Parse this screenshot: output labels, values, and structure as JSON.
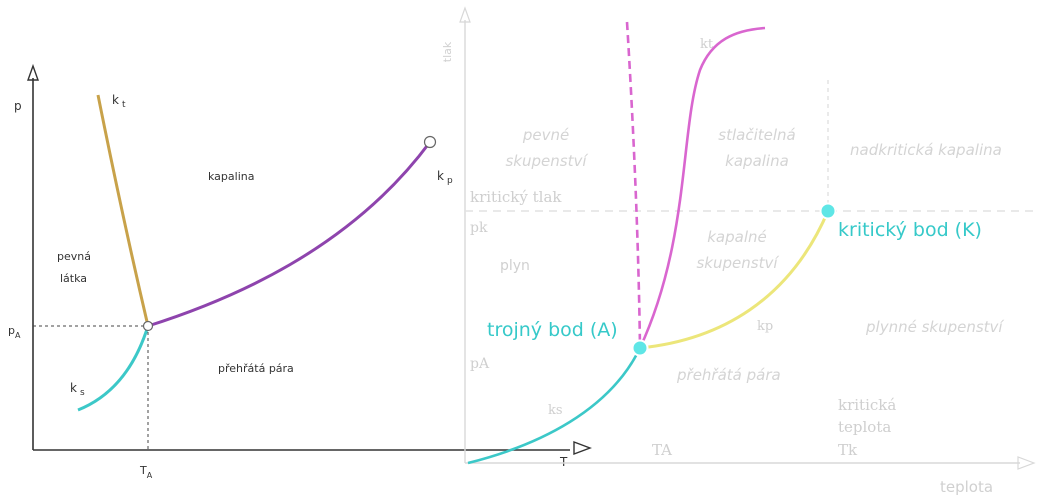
{
  "left_diagram": {
    "axis_y_label": "p",
    "axis_x_label": "T",
    "pA_label": "p",
    "pA_sub": "A",
    "TA_label": "T",
    "TA_sub": "A",
    "curve_kt_label": "k",
    "curve_kt_sub": "t",
    "curve_ks_label": "k",
    "curve_ks_sub": "s",
    "curve_kp_label": "k",
    "curve_kp_sub": "p",
    "region_solid": "pevná\nlátka",
    "region_liquid": "kapalina",
    "region_vapor": "přehřátá pára"
  },
  "right_diagram": {
    "axis_y_label": "tlak",
    "axis_x_label": "teplota",
    "region_solid": "pevné\nskupenství",
    "region_compressible_liquid": "stlačitelná\nkapalina",
    "region_supercritical": "nadkritická kapalina",
    "region_gas": "plyn",
    "region_liquid": "kapalné\nskupenství",
    "region_gaseous": "plynné skupenství",
    "region_vapor": "přehřátá pára",
    "critical_pressure": "kritický tlak",
    "pk_label": "pk",
    "pa_label": "pA",
    "ta_label": "TA",
    "tk_label": "Tk",
    "critical_temperature": "kritická\nteplota",
    "curve_kt_label": "kt",
    "curve_kp_label": "kp",
    "curve_ks_label": "ks",
    "triple_point_label": "trojný bod (A)",
    "critical_point_label": "kritický bod (K)"
  },
  "colors": {
    "melting_curve_left": "#c8a24a",
    "vapor_curve_left": "#8e44ad",
    "sublimation_curve": "#3cc8c8",
    "melting_curve_right": "#d966cf",
    "melting_dashed_right": "#d966cf",
    "vapor_curve_right": "#ece67a",
    "highlight_label": "#36c9c9",
    "faint_text": "#d4d4d4"
  }
}
